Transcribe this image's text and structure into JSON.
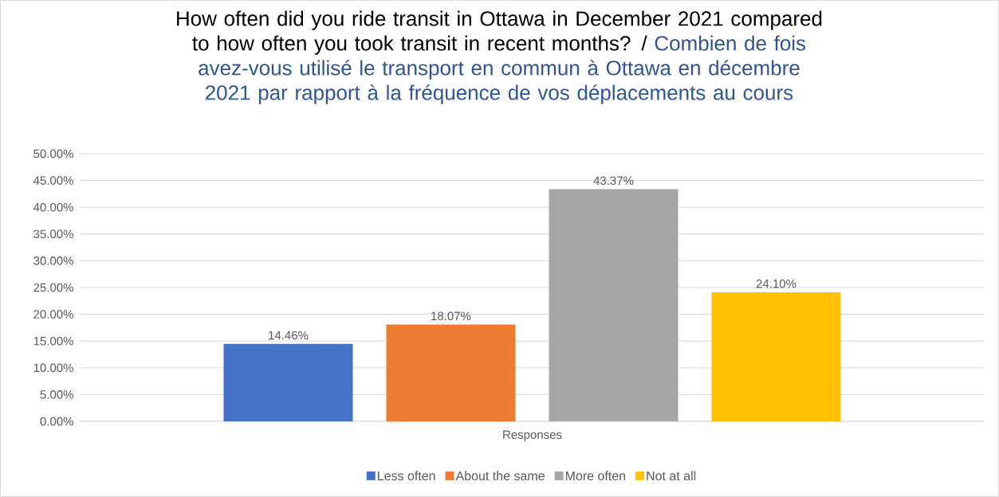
{
  "chart_data": {
    "type": "bar",
    "title": "How often did you ride transit in Ottawa in December 2021 compared to how often you took transit in recent months? /",
    "subtitle": "Combien de fois avez-vous utilisé le transport en commun à Ottawa en décembre 2021 par rapport à la fréquence de vos déplacements au cours",
    "categories": [
      "Responses"
    ],
    "series": [
      {
        "name": "Less often",
        "color": "#4472c4",
        "values": [
          14.46
        ],
        "value_labels": [
          "14.46%"
        ]
      },
      {
        "name": "About the same",
        "color": "#ed7d31",
        "values": [
          18.07
        ],
        "value_labels": [
          "18.07%"
        ]
      },
      {
        "name": "More often",
        "color": "#a5a5a5",
        "values": [
          43.37
        ],
        "value_labels": [
          "43.37%"
        ]
      },
      {
        "name": "Not at all",
        "color": "#ffc000",
        "values": [
          24.1
        ],
        "value_labels": [
          "24.10%"
        ]
      }
    ],
    "ylim": [
      0,
      50
    ],
    "yticks": [
      {
        "value": 0,
        "label": "0.00%"
      },
      {
        "value": 5,
        "label": "5.00%"
      },
      {
        "value": 10,
        "label": "10.00%"
      },
      {
        "value": 15,
        "label": "15.00%"
      },
      {
        "value": 20,
        "label": "20.00%"
      },
      {
        "value": 25,
        "label": "25.00%"
      },
      {
        "value": 30,
        "label": "30.00%"
      },
      {
        "value": 35,
        "label": "35.00%"
      },
      {
        "value": 40,
        "label": "40.00%"
      },
      {
        "value": 45,
        "label": "45.00%"
      },
      {
        "value": 50,
        "label": "50.00%"
      }
    ],
    "grid": "y",
    "legend": "bottom"
  }
}
